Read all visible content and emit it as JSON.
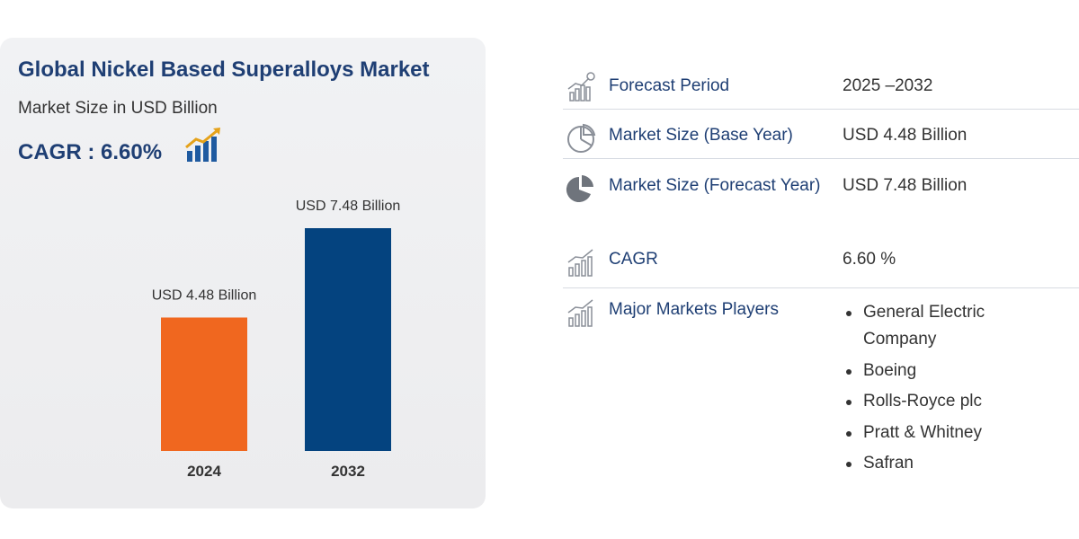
{
  "title": "Global Nickel Based Superalloys Market",
  "subtitle": "Market Size in USD Billion",
  "cagr_label": "CAGR : 6.60%",
  "colors": {
    "title": "#1f3f74",
    "bar_2024": "#f0671f",
    "bar_2032": "#04437f",
    "panel": "#efeff1"
  },
  "chart_data": {
    "type": "bar",
    "title": "",
    "xlabel": "",
    "ylabel": "",
    "categories": [
      "2024",
      "2032"
    ],
    "values": [
      4.48,
      7.48
    ],
    "data_labels": [
      "USD 4.48 Billion",
      "USD 7.48 Billion"
    ],
    "colors": [
      "#f0671f",
      "#04437f"
    ],
    "ylim": [
      0,
      7.48
    ],
    "grid": false
  },
  "summary": {
    "rows": [
      {
        "icon": "bar-chart-search-icon",
        "label": "Forecast Period",
        "value": "2025 –2032"
      },
      {
        "icon": "pie-chart-outline-icon",
        "label": "Market Size (Base Year)",
        "value": "USD 4.48 Billion"
      },
      {
        "icon": "pie-chart-filled-icon",
        "label": "Market Size (Forecast Year)",
        "value": "USD 7.48 Billion"
      },
      {
        "icon": "growth-chart-icon",
        "label": "CAGR",
        "value": "6.60 %"
      },
      {
        "icon": "growth-chart-icon",
        "label": "Major Markets Players",
        "value": ""
      }
    ],
    "players": [
      "General Electric Company",
      "Boeing",
      "Rolls-Royce plc",
      "Pratt & Whitney",
      "Safran"
    ]
  }
}
